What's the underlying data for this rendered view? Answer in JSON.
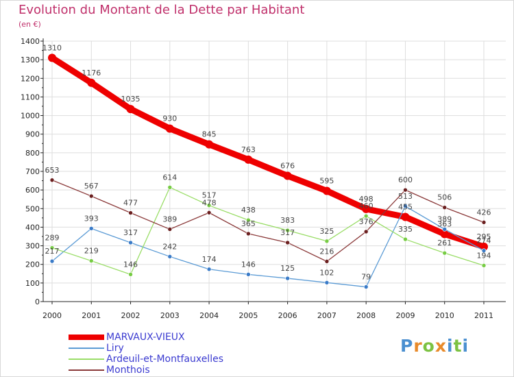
{
  "colors": {
    "title": "#c0306b",
    "legend_text": "#3a3ad0",
    "grid": "#dddddd",
    "axis": "#222222",
    "tick_label": "#222222",
    "data_label": "#444444"
  },
  "chart_data": {
    "type": "line",
    "title": "Evolution du Montant de la Dette par Habitant",
    "subtitle": "(en €)",
    "x": [
      "2000",
      "2001",
      "2002",
      "2003",
      "2004",
      "2005",
      "2006",
      "2007",
      "2008",
      "2009",
      "2010",
      "2011"
    ],
    "ylim": [
      0,
      1400
    ],
    "yticks": [
      "0",
      "100",
      "200",
      "300",
      "400",
      "500",
      "600",
      "700",
      "800",
      "900",
      "1000",
      "1100",
      "1200",
      "1300",
      "1400"
    ],
    "grid": true,
    "legend_position": "bottom-left",
    "series": [
      {
        "name": "MARVAUX-VIEUX",
        "color": "#ee0000",
        "emphasis": true,
        "values": [
          1310,
          1176,
          1035,
          930,
          845,
          763,
          676,
          595,
          498,
          455,
          363,
          295
        ]
      },
      {
        "name": "Liry",
        "color": "#5b9bd5",
        "marker": "#3a7bc8",
        "values": [
          217,
          393,
          317,
          242,
          174,
          146,
          125,
          102,
          79,
          513,
          389,
          274
        ]
      },
      {
        "name": "Ardeuil-et-Montfauxelles",
        "color": "#99dd66",
        "marker": "#77cc44",
        "values": [
          289,
          219,
          146,
          614,
          517,
          438,
          383,
          325,
          460,
          335,
          261,
          194
        ]
      },
      {
        "name": "Monthois",
        "color": "#8b3a3a",
        "marker": "#6b1f1f",
        "values": [
          653,
          567,
          477,
          389,
          478,
          365,
          317,
          216,
          376,
          600,
          506,
          426
        ]
      }
    ]
  },
  "logo": {
    "text": "Proxiti",
    "letter_colors": [
      "#4a8fd0",
      "#e88a2a",
      "#7cc242",
      "#e88a2a",
      "#4a8fd0",
      "#7cc242",
      "#4a8fd0"
    ]
  }
}
